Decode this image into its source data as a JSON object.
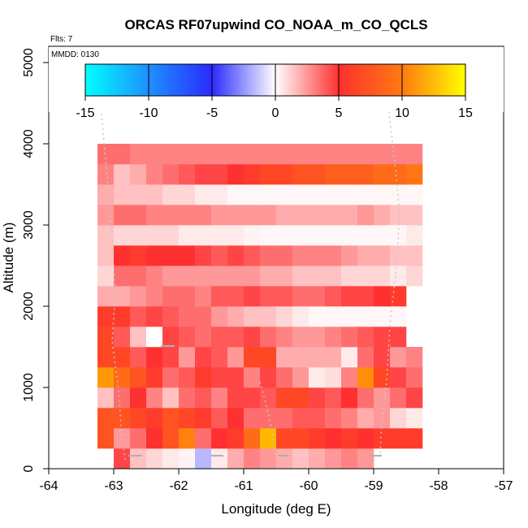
{
  "chart_data": {
    "type": "heatmap",
    "title": "ORCAS RF07upwind CO_NOAA_m_CO_QCLS",
    "flights_note": "Flts: 7",
    "date_note": "MMDD: 0130",
    "xlabel": "Longitude (deg E)",
    "ylabel": "Altitude (m)",
    "xlim": [
      -64,
      -57
    ],
    "ylim": [
      0,
      5200
    ],
    "x_ticks": [
      -64,
      -63,
      -62,
      -61,
      -60,
      -59,
      -58,
      -57
    ],
    "x_tick_labels": [
      "-64",
      "-63",
      "-62",
      "-61",
      "-60",
      "-59",
      "-58",
      "-57"
    ],
    "y_ticks": [
      0,
      1000,
      2000,
      3000,
      4000,
      5000
    ],
    "y_tick_labels": [
      "0",
      "1000",
      "2000",
      "3000",
      "4000",
      "5000"
    ],
    "colorbar": {
      "range": [
        -15,
        15
      ],
      "ticks": [
        -15,
        -10,
        -5,
        0,
        5,
        10,
        15
      ],
      "tick_labels": [
        "-15",
        "-10",
        "-5",
        "0",
        "5",
        "10",
        "15"
      ],
      "colors": [
        "#00ffff",
        "#2b2bff",
        "#ffffff",
        "#ff3030",
        "#ffa500",
        "#ffff00"
      ]
    },
    "grid": {
      "lon_start": -63.25,
      "lon_step": 0.25,
      "alt_start": 250,
      "alt_step": 250
    },
    "rows": [
      {
        "alt": 125,
        "lon0": -63.0,
        "values": [
          4.5,
          1.5,
          1.0,
          0.5,
          0.3,
          -2.5,
          0.5,
          2.0,
          3.0,
          2.5,
          2.0,
          1.5,
          2.0,
          2.5,
          3.0,
          2.5
        ]
      },
      {
        "alt": 375,
        "lon0": -63.25,
        "values": [
          6.5,
          2.5,
          3.5,
          5.0,
          6.5,
          8.5,
          3.5,
          5.0,
          5.5,
          7.5,
          11.0,
          6.0,
          6.0,
          5.5,
          5.0,
          5.5,
          5.0,
          5.5,
          5.5,
          5.5
        ]
      },
      {
        "alt": 625,
        "lon0": -63.25,
        "values": [
          6.5,
          6.5,
          6.0,
          5.5,
          6.5,
          6.0,
          5.5,
          4.0,
          5.0,
          3.5,
          3.5,
          3.5,
          4.0,
          4.0,
          3.5,
          3.0,
          2.0,
          2.5,
          1.0,
          0.5
        ]
      },
      {
        "alt": 875,
        "lon0": -63.25,
        "values": [
          1.5,
          3.5,
          5.0,
          3.0,
          1.5,
          3.5,
          4.0,
          3.0,
          4.5,
          4.5,
          4.0,
          6.0,
          6.0,
          4.5,
          4.0,
          5.0,
          3.5,
          2.5,
          3.5,
          4.5
        ]
      },
      {
        "alt": 1125,
        "lon0": -63.25,
        "values": [
          9.5,
          7.5,
          6.5,
          5.5,
          3.5,
          4.0,
          5.5,
          4.5,
          4.5,
          3.0,
          4.5,
          3.5,
          2.5,
          0.5,
          0.8,
          3.0,
          9.0,
          6.0,
          4.5,
          3.5
        ]
      },
      {
        "alt": 1375,
        "lon0": -63.25,
        "values": [
          6.0,
          6.0,
          4.0,
          5.0,
          4.5,
          2.5,
          4.5,
          4.0,
          2.5,
          6.0,
          6.0,
          2.0,
          2.0,
          2.0,
          2.0,
          0.5,
          3.5,
          4.5,
          2.5,
          3.0
        ]
      },
      {
        "alt": 1625,
        "lon0": -63.25,
        "values": [
          6.0,
          4.0,
          1.5,
          0.0,
          4.5,
          4.0,
          3.5,
          4.0,
          4.0,
          4.5,
          3.5,
          3.0,
          2.5,
          2.5,
          3.0,
          3.5,
          4.0,
          4.5,
          4.5
        ]
      },
      {
        "alt": 1875,
        "lon0": -63.25,
        "values": [
          5.5,
          5.5,
          4.0,
          4.5,
          4.0,
          3.5,
          3.5,
          2.5,
          2.0,
          1.5,
          1.5,
          1.0,
          0.5,
          0.2,
          0.2,
          0.2,
          0.2,
          0.2,
          0.2
        ]
      },
      {
        "alt": 2125,
        "lon0": -63.25,
        "values": [
          2.0,
          2.0,
          2.5,
          3.0,
          3.5,
          3.5,
          3.0,
          4.0,
          4.0,
          4.5,
          4.0,
          4.0,
          3.5,
          3.5,
          4.0,
          4.5,
          4.5,
          5.0,
          5.5
        ]
      },
      {
        "alt": 2375,
        "lon0": -63.25,
        "values": [
          1.0,
          3.5,
          3.5,
          3.0,
          2.5,
          2.5,
          2.5,
          2.5,
          2.5,
          2.5,
          2.0,
          2.0,
          1.5,
          1.5,
          1.5,
          1.0,
          1.0,
          1.0,
          0.5,
          1.0
        ]
      },
      {
        "alt": 2625,
        "lon0": -63.25,
        "values": [
          1.5,
          5.0,
          5.5,
          5.0,
          5.0,
          5.0,
          4.5,
          4.0,
          4.5,
          4.0,
          3.5,
          3.5,
          3.0,
          3.0,
          3.0,
          2.5,
          2.0,
          2.0,
          1.5,
          1.5
        ]
      },
      {
        "alt": 2875,
        "lon0": -63.25,
        "values": [
          1.5,
          1.0,
          1.0,
          1.0,
          1.0,
          0.5,
          0.5,
          0.5,
          0.5,
          0.3,
          0.2,
          0.2,
          0.2,
          0.2,
          0.2,
          0.2,
          0.2,
          0.2,
          0.2,
          0.5
        ]
      },
      {
        "alt": 3125,
        "lon0": -63.25,
        "values": [
          2.5,
          3.5,
          3.5,
          3.0,
          3.0,
          3.0,
          3.0,
          2.5,
          2.5,
          2.5,
          2.5,
          2.0,
          2.0,
          2.0,
          2.0,
          2.0,
          2.5,
          2.0,
          1.5,
          1.5
        ]
      },
      {
        "alt": 3375,
        "lon0": -63.25,
        "values": [
          2.0,
          1.5,
          1.5,
          1.5,
          1.0,
          1.0,
          0.5,
          0.5,
          0.2,
          0.2,
          0.2,
          0.2,
          0.2,
          0.2,
          0.2,
          0.2,
          0.2,
          0.2,
          0.2,
          0.2
        ]
      },
      {
        "alt": 3625,
        "lon0": -63.25,
        "values": [
          3.0,
          1.5,
          2.0,
          3.0,
          3.5,
          4.0,
          4.5,
          4.5,
          5.0,
          5.5,
          6.0,
          6.0,
          6.5,
          6.5,
          7.0,
          7.0,
          7.0,
          7.5,
          7.5,
          8.0
        ]
      },
      {
        "alt": 3875,
        "lon0": -63.25,
        "values": [
          3.5,
          3.5,
          3.0,
          3.0,
          3.0,
          3.0,
          3.0,
          3.0,
          3.0,
          3.0,
          3.0,
          3.0,
          3.0,
          3.0,
          3.0,
          3.0,
          3.0,
          3.0,
          3.0,
          3.0
        ]
      }
    ]
  }
}
